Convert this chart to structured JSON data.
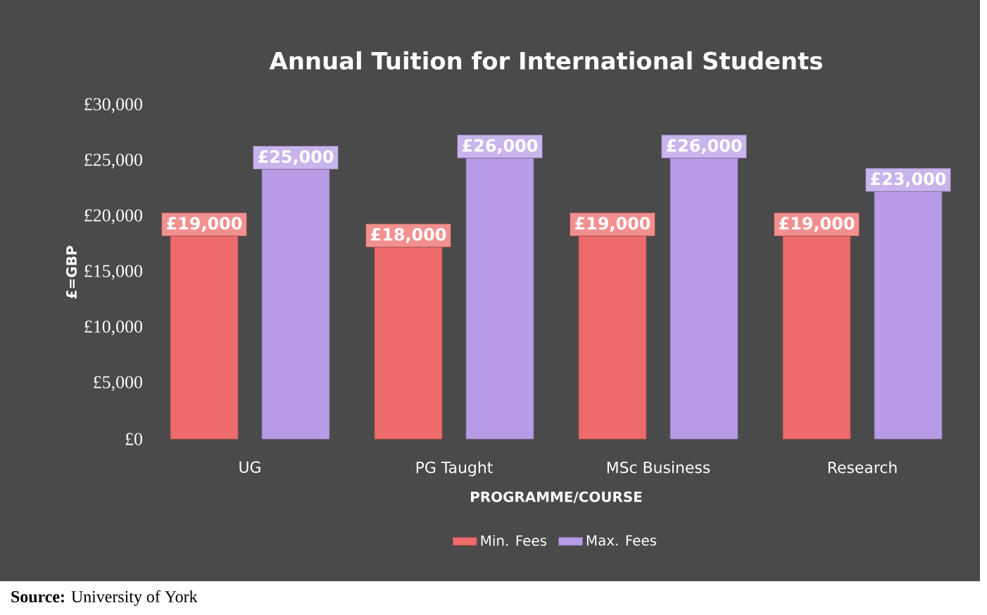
{
  "chart_data": {
    "type": "bar",
    "title": "Annual Tuition for International Students",
    "xlabel": "PROGRAMME/COURSE",
    "ylabel": "£=GBP",
    "categories": [
      "UG",
      "PG Taught",
      "MSc Business",
      "Research"
    ],
    "series": [
      {
        "name": "Min. Fees",
        "color": "#ee6b6b",
        "values": [
          19000,
          18000,
          19000,
          19000
        ],
        "value_labels": [
          "£19,000",
          "£18,000",
          "£19,000",
          "£19,000"
        ]
      },
      {
        "name": "Max. Fees",
        "color": "#b79be6",
        "values": [
          25000,
          26000,
          26000,
          23000
        ],
        "value_labels": [
          "£25,000",
          "£26,000",
          "£26,000",
          "£23,000"
        ]
      }
    ],
    "ylim": [
      0,
      30000
    ],
    "yticks": [
      {
        "value": 0,
        "label": "£0"
      },
      {
        "value": 5000,
        "label": "£5,000"
      },
      {
        "value": 10000,
        "label": "£10,000"
      },
      {
        "value": 15000,
        "label": "£15,000"
      },
      {
        "value": 20000,
        "label": "£20,000"
      },
      {
        "value": 25000,
        "label": "£25,000"
      },
      {
        "value": 30000,
        "label": "£30,000"
      }
    ],
    "legend": "bottom",
    "annotations": [
      "**Source:** University of York"
    ]
  }
}
